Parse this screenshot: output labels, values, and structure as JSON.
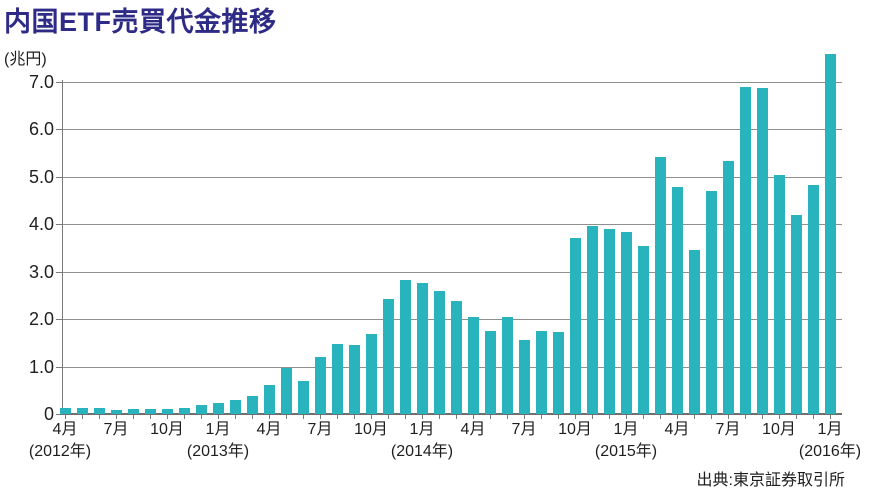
{
  "title": "内国ETF売買代金推移",
  "source": "出典:東京証券取引所",
  "chart_data": {
    "type": "bar",
    "title": "内国ETF売買代金推移",
    "unit_label": "(兆円)",
    "ylabel": "兆円",
    "ylim": [
      0,
      7.0
    ],
    "y_ticks": [
      "0",
      "1.0",
      "2.0",
      "3.0",
      "4.0",
      "5.0",
      "6.0",
      "7.0"
    ],
    "bar_color": "#29b3bc",
    "title_color": "#2e2b87",
    "grid_on": true,
    "x": [
      "2012-04",
      "2012-05",
      "2012-06",
      "2012-07",
      "2012-08",
      "2012-09",
      "2012-10",
      "2012-11",
      "2012-12",
      "2013-01",
      "2013-02",
      "2013-03",
      "2013-04",
      "2013-05",
      "2013-06",
      "2013-07",
      "2013-08",
      "2013-09",
      "2013-10",
      "2013-11",
      "2013-12",
      "2014-01",
      "2014-02",
      "2014-03",
      "2014-04",
      "2014-05",
      "2014-06",
      "2014-07",
      "2014-08",
      "2014-09",
      "2014-10",
      "2014-11",
      "2014-12",
      "2015-01",
      "2015-02",
      "2015-03",
      "2015-04",
      "2015-05",
      "2015-06",
      "2015-07",
      "2015-08",
      "2015-09",
      "2015-10",
      "2015-11",
      "2015-12",
      "2016-01"
    ],
    "values": [
      0.12,
      0.12,
      0.13,
      0.09,
      0.1,
      0.1,
      0.1,
      0.13,
      0.19,
      0.24,
      0.29,
      0.38,
      0.61,
      0.96,
      0.69,
      1.2,
      1.47,
      1.45,
      1.69,
      2.42,
      2.82,
      2.76,
      2.6,
      2.38,
      2.05,
      1.75,
      2.04,
      1.57,
      1.74,
      1.72,
      3.72,
      3.97,
      3.91,
      3.84,
      3.54,
      5.42,
      4.79,
      3.46,
      4.71,
      5.33,
      6.9,
      6.87,
      5.03,
      4.19,
      4.83,
      7.6
    ],
    "x_tick_labels": [
      {
        "index": 0,
        "label": "4月"
      },
      {
        "index": 3,
        "label": "7月"
      },
      {
        "index": 6,
        "label": "10月"
      },
      {
        "index": 9,
        "label": "1月"
      },
      {
        "index": 12,
        "label": "4月"
      },
      {
        "index": 15,
        "label": "7月"
      },
      {
        "index": 18,
        "label": "10月"
      },
      {
        "index": 21,
        "label": "1月"
      },
      {
        "index": 24,
        "label": "4月"
      },
      {
        "index": 27,
        "label": "7月"
      },
      {
        "index": 30,
        "label": "10月"
      },
      {
        "index": 33,
        "label": "1月"
      },
      {
        "index": 36,
        "label": "4月"
      },
      {
        "index": 39,
        "label": "7月"
      },
      {
        "index": 42,
        "label": "10月"
      },
      {
        "index": 45,
        "label": "1月"
      }
    ],
    "year_labels": [
      {
        "index": 0,
        "label": "(2012年)"
      },
      {
        "index": 9,
        "label": "(2013年)"
      },
      {
        "index": 21,
        "label": "(2014年)"
      },
      {
        "index": 33,
        "label": "(2015年)"
      },
      {
        "index": 45,
        "label": "(2016年)"
      }
    ]
  }
}
